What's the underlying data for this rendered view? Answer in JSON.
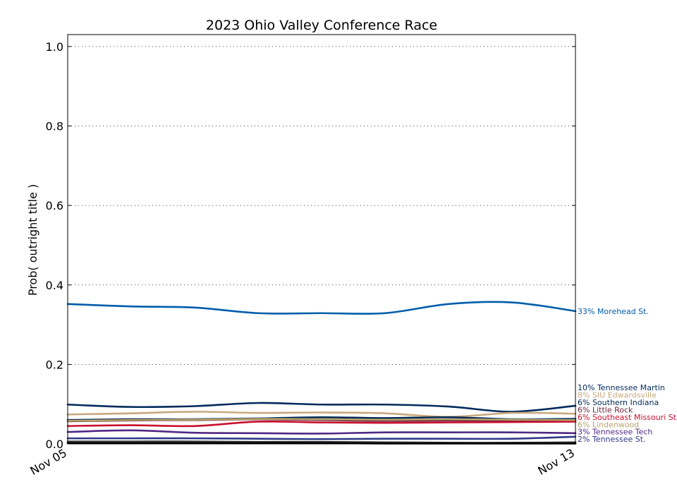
{
  "chart_data": {
    "type": "line",
    "title": "2023 Ohio Valley Conference Race",
    "xlabel": "",
    "ylabel": "Prob( outright title )",
    "x": [
      "Nov 05",
      "Nov 06",
      "Nov 07",
      "Nov 08",
      "Nov 09",
      "Nov 10",
      "Nov 11",
      "Nov 12",
      "Nov 13"
    ],
    "x_tick_labels": [
      "Nov 05",
      "Nov 13"
    ],
    "ylim": [
      0,
      1.03
    ],
    "y_ticks": [
      0.0,
      0.2,
      0.4,
      0.6,
      0.8,
      1.0
    ],
    "y_tick_labels": [
      "0.0",
      "0.2",
      "0.4",
      "0.6",
      "0.8",
      "1.0"
    ],
    "grid": "horizontal-dotted",
    "legend": "end-labels-right",
    "series": [
      {
        "name": "Morehead St.",
        "label": "33% Morehead St.",
        "color": "#005DAA",
        "values": [
          0.352,
          0.346,
          0.343,
          0.329,
          0.329,
          0.329,
          0.352,
          0.356,
          0.334
        ]
      },
      {
        "name": "Tennessee Martin",
        "label": "10% Tennessee Martin",
        "color": "#002A5C",
        "values": [
          0.099,
          0.093,
          0.095,
          0.103,
          0.099,
          0.099,
          0.094,
          0.081,
          0.096
        ]
      },
      {
        "name": "SIU Edwardsville",
        "label": "8% SIU Edwardsville",
        "color": "#C8A97E",
        "values": [
          0.074,
          0.077,
          0.081,
          0.078,
          0.079,
          0.077,
          0.068,
          0.078,
          0.076
        ]
      },
      {
        "name": "Southern Indiana",
        "label": "6% Southern Indiana",
        "color": "#002855",
        "values": [
          0.06,
          0.062,
          0.062,
          0.064,
          0.067,
          0.065,
          0.067,
          0.062,
          0.063
        ]
      },
      {
        "name": "Little Rock",
        "label": "6% Little Rock",
        "color": "#6F263D",
        "values": [
          0.057,
          0.059,
          0.06,
          0.062,
          0.06,
          0.058,
          0.059,
          0.058,
          0.058
        ]
      },
      {
        "name": "Southeast Missouri St.",
        "label": "6% Southeast Missouri St.",
        "color": "#C8102E",
        "values": [
          0.045,
          0.047,
          0.045,
          0.056,
          0.054,
          0.053,
          0.054,
          0.055,
          0.056
        ]
      },
      {
        "name": "Lindenwood",
        "label": "6% Lindenwood",
        "color": "#B5A36A",
        "values": [
          0.058,
          0.06,
          0.061,
          0.063,
          0.062,
          0.061,
          0.062,
          0.061,
          0.06
        ]
      },
      {
        "name": "Tennessee Tech",
        "label": "3% Tennessee Tech",
        "color": "#4F2984",
        "values": [
          0.03,
          0.034,
          0.028,
          0.027,
          0.026,
          0.029,
          0.029,
          0.029,
          0.027
        ]
      },
      {
        "name": "Tennessee St.",
        "label": "2% Tennessee St.",
        "color": "#2E3A87",
        "values": [
          0.014,
          0.014,
          0.014,
          0.013,
          0.012,
          0.013,
          0.013,
          0.013,
          0.018
        ]
      },
      {
        "name": "",
        "label": "",
        "color": "#333333",
        "values": [
          0.006,
          0.006,
          0.006,
          0.005,
          0.005,
          0.004,
          0.003,
          0.003,
          0.004
        ]
      },
      {
        "name": "",
        "label": "",
        "color": "#000000",
        "values": [
          0.002,
          0.002,
          0.002,
          0.002,
          0.002,
          0.001,
          0.001,
          0.001,
          0.001
        ]
      }
    ]
  }
}
